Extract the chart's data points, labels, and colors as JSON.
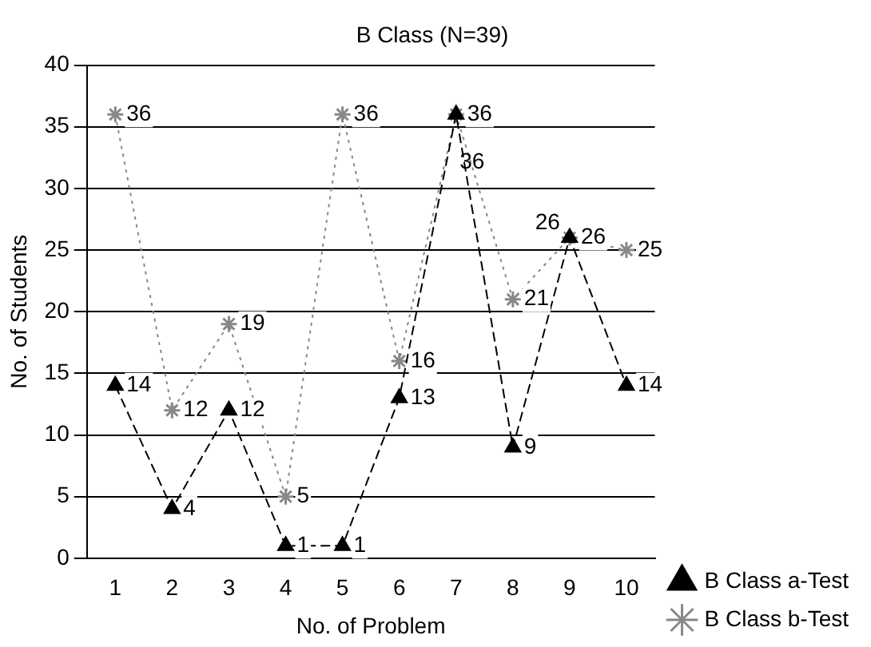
{
  "chart_data": {
    "type": "line",
    "title": "B Class (N=39)",
    "xlabel": "No. of Problem",
    "ylabel": "No. of Students",
    "categories": [
      "1",
      "2",
      "3",
      "4",
      "5",
      "6",
      "7",
      "8",
      "9",
      "10"
    ],
    "series": [
      {
        "name": "B Class a-Test",
        "color": "#000000",
        "marker": "triangle",
        "line_style": "dashed",
        "values": [
          14,
          4,
          12,
          1,
          1,
          13,
          36,
          9,
          26,
          14
        ]
      },
      {
        "name": "B Class b-Test",
        "color": "#888888",
        "marker": "cross",
        "line_style": "dotted",
        "values": [
          36,
          12,
          19,
          5,
          36,
          16,
          36,
          21,
          26,
          25
        ]
      }
    ],
    "ylim": [
      0,
      40
    ],
    "yticks": [
      0,
      5,
      10,
      15,
      20,
      25,
      30,
      35,
      40
    ],
    "grid": "y",
    "legend": "bottom right",
    "data_labels": true
  }
}
